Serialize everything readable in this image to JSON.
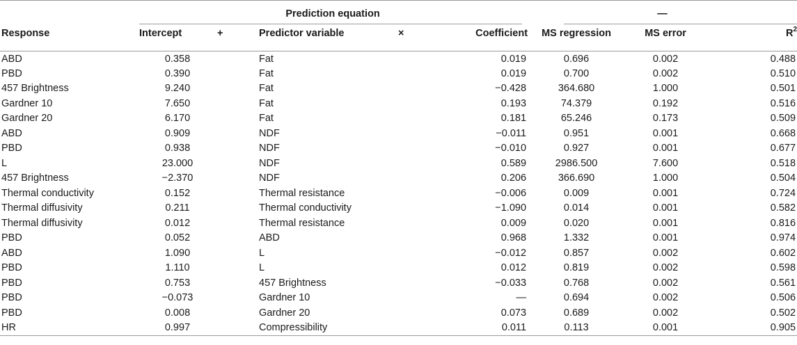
{
  "header": {
    "group1": "Prediction equation",
    "group2": "—",
    "columns": {
      "response": "Response",
      "intercept": "Intercept",
      "plus": "+",
      "predictor": "Predictor variable",
      "times": "×",
      "coefficient": "Coefficient",
      "ms_regression": "MS regression",
      "ms_error": "MS error",
      "r2_base": "R",
      "r2_sup": "2"
    }
  },
  "rows": [
    {
      "response": "ABD",
      "intercept": "0.358",
      "predictor": "Fat",
      "coefficient": "0.019",
      "ms_regression": "0.696",
      "ms_error": "0.002",
      "r2": "0.488"
    },
    {
      "response": "PBD",
      "intercept": "0.390",
      "predictor": "Fat",
      "coefficient": "0.019",
      "ms_regression": "0.700",
      "ms_error": "0.002",
      "r2": "0.510"
    },
    {
      "response": "457 Brightness",
      "intercept": "9.240",
      "predictor": "Fat",
      "coefficient": "−0.428",
      "ms_regression": "364.680",
      "ms_error": "1.000",
      "r2": "0.501"
    },
    {
      "response": "Gardner 10",
      "intercept": "7.650",
      "predictor": "Fat",
      "coefficient": "0.193",
      "ms_regression": "74.379",
      "ms_error": "0.192",
      "r2": "0.516"
    },
    {
      "response": "Gardner 20",
      "intercept": "6.170",
      "predictor": "Fat",
      "coefficient": "0.181",
      "ms_regression": "65.246",
      "ms_error": "0.173",
      "r2": "0.509"
    },
    {
      "response": "ABD",
      "intercept": "0.909",
      "predictor": "NDF",
      "coefficient": "−0.011",
      "ms_regression": "0.951",
      "ms_error": "0.001",
      "r2": "0.668"
    },
    {
      "response": "PBD",
      "intercept": "0.938",
      "predictor": "NDF",
      "coefficient": "−0.010",
      "ms_regression": "0.927",
      "ms_error": "0.001",
      "r2": "0.677"
    },
    {
      "response": "L",
      "intercept": "23.000",
      "predictor": "NDF",
      "coefficient": "0.589",
      "ms_regression": "2986.500",
      "ms_error": "7.600",
      "r2": "0.518"
    },
    {
      "response": "457 Brightness",
      "intercept": "−2.370",
      "predictor": "NDF",
      "coefficient": "0.206",
      "ms_regression": "366.690",
      "ms_error": "1.000",
      "r2": "0.504"
    },
    {
      "response": "Thermal conductivity",
      "intercept": "0.152",
      "predictor": "Thermal resistance",
      "coefficient": "−0.006",
      "ms_regression": "0.009",
      "ms_error": "0.001",
      "r2": "0.724"
    },
    {
      "response": "Thermal diffusivity",
      "intercept": "0.211",
      "predictor": "Thermal conductivity",
      "coefficient": "−1.090",
      "ms_regression": "0.014",
      "ms_error": "0.001",
      "r2": "0.582"
    },
    {
      "response": "Thermal diffusivity",
      "intercept": "0.012",
      "predictor": "Thermal resistance",
      "coefficient": "0.009",
      "ms_regression": "0.020",
      "ms_error": "0.001",
      "r2": "0.816"
    },
    {
      "response": "PBD",
      "intercept": "0.052",
      "predictor": "ABD",
      "coefficient": "0.968",
      "ms_regression": "1.332",
      "ms_error": "0.001",
      "r2": "0.974"
    },
    {
      "response": "ABD",
      "intercept": "1.090",
      "predictor": "L",
      "coefficient": "−0.012",
      "ms_regression": "0.857",
      "ms_error": "0.002",
      "r2": "0.602"
    },
    {
      "response": "PBD",
      "intercept": "1.110",
      "predictor": "L",
      "coefficient": "0.012",
      "ms_regression": "0.819",
      "ms_error": "0.002",
      "r2": "0.598"
    },
    {
      "response": "PBD",
      "intercept": "0.753",
      "predictor": "457 Brightness",
      "coefficient": "−0.033",
      "ms_regression": "0.768",
      "ms_error": "0.002",
      "r2": "0.561"
    },
    {
      "response": "PBD",
      "intercept": "−0.073",
      "predictor": "Gardner 10",
      "coefficient": "—",
      "ms_regression": "0.694",
      "ms_error": "0.002",
      "r2": "0.506"
    },
    {
      "response": "PBD",
      "intercept": "0.008",
      "predictor": "Gardner 20",
      "coefficient": "0.073",
      "ms_regression": "0.689",
      "ms_error": "0.002",
      "r2": "0.502"
    },
    {
      "response": "HR",
      "intercept": "0.997",
      "predictor": "Compressibility",
      "coefficient": "0.011",
      "ms_regression": "0.113",
      "ms_error": "0.001",
      "r2": "0.905"
    }
  ]
}
